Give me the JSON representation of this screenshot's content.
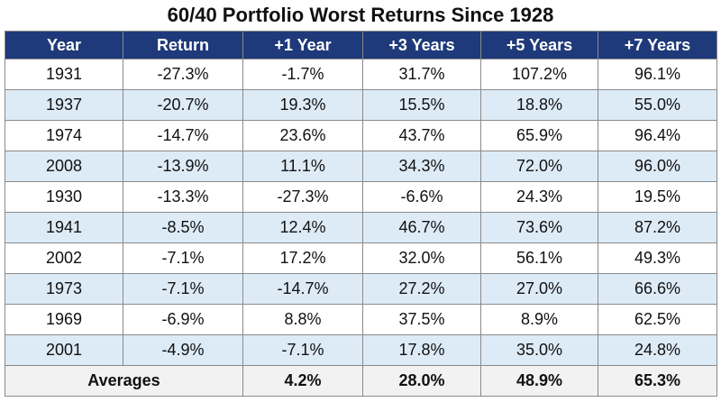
{
  "chart_data": {
    "type": "table",
    "title": "60/40 Portfolio Worst Returns Since 1928",
    "columns": [
      "Year",
      "Return",
      "+1 Year",
      "+3 Years",
      "+5 Years",
      "+7 Years"
    ],
    "rows": [
      [
        "1931",
        "-27.3%",
        "-1.7%",
        "31.7%",
        "107.2%",
        "96.1%"
      ],
      [
        "1937",
        "-20.7%",
        "19.3%",
        "15.5%",
        "18.8%",
        "55.0%"
      ],
      [
        "1974",
        "-14.7%",
        "23.6%",
        "43.7%",
        "65.9%",
        "96.4%"
      ],
      [
        "2008",
        "-13.9%",
        "11.1%",
        "34.3%",
        "72.0%",
        "96.0%"
      ],
      [
        "1930",
        "-13.3%",
        "-27.3%",
        "-6.6%",
        "24.3%",
        "19.5%"
      ],
      [
        "1941",
        "-8.5%",
        "12.4%",
        "46.7%",
        "73.6%",
        "87.2%"
      ],
      [
        "2002",
        "-7.1%",
        "17.2%",
        "32.0%",
        "56.1%",
        "49.3%"
      ],
      [
        "1973",
        "-7.1%",
        "-14.7%",
        "27.2%",
        "27.0%",
        "66.6%"
      ],
      [
        "1969",
        "-6.9%",
        "8.8%",
        "37.5%",
        "8.9%",
        "62.5%"
      ],
      [
        "2001",
        "-4.9%",
        "-7.1%",
        "17.8%",
        "35.0%",
        "24.8%"
      ]
    ],
    "averages": {
      "label": "Averages",
      "values": [
        "4.2%",
        "28.0%",
        "48.9%",
        "65.3%"
      ]
    }
  },
  "colors": {
    "header_bg": "#1f3a7a",
    "alt_row_bg": "#ddebf7",
    "footer_bg": "#f2f2f2"
  }
}
